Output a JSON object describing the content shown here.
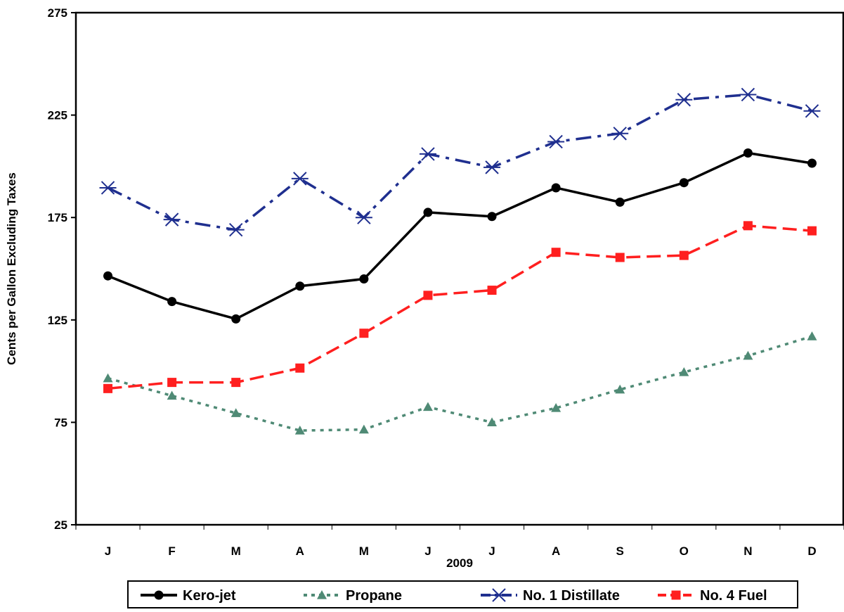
{
  "chart_data": {
    "type": "line",
    "title": "",
    "xlabel": "2009",
    "ylabel": "Cents per Gallon Excluding Taxes",
    "categories": [
      "J",
      "F",
      "M",
      "A",
      "M",
      "J",
      "J",
      "A",
      "S",
      "O",
      "N",
      "D"
    ],
    "ylim": [
      25,
      275
    ],
    "yticks": [
      "25",
      "75",
      "125",
      "175",
      "225",
      "275"
    ],
    "grid": false,
    "legend_position": "bottom",
    "series": [
      {
        "name": "Kero-jet",
        "color": "#000000",
        "marker": "circle",
        "line_style": "solid",
        "values": [
          146.5,
          134,
          125.5,
          141.5,
          145,
          177.5,
          175.5,
          189.5,
          182.5,
          192,
          206.5,
          201.5
        ]
      },
      {
        "name": "Propane",
        "color": "#4f8a75",
        "marker": "triangle",
        "line_style": "dotted",
        "values": [
          96.5,
          88,
          79.5,
          71,
          71.5,
          82.5,
          75,
          82,
          91,
          99.5,
          107.5,
          117
        ]
      },
      {
        "name": "No. 1 Distillate",
        "color": "#1f2f8f",
        "marker": "asterisk",
        "line_style": "dashdot",
        "values": [
          189.5,
          174,
          169,
          194,
          175,
          206,
          199.5,
          212,
          216,
          232.5,
          235,
          227
        ]
      },
      {
        "name": "No. 4 Fuel",
        "color": "#ff1f1f",
        "marker": "square",
        "line_style": "dashed",
        "values": [
          91.5,
          94.5,
          94.5,
          101.5,
          118.5,
          137,
          139.5,
          158,
          155.5,
          156.5,
          171,
          168.5
        ]
      }
    ]
  }
}
